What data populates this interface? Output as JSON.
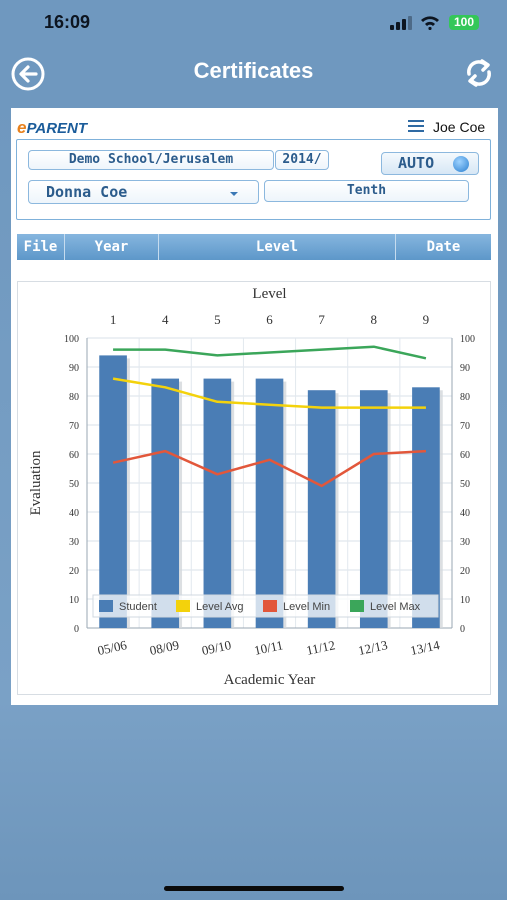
{
  "status_bar": {
    "time": "16:09",
    "battery": "100"
  },
  "nav": {
    "title": "Certificates",
    "back_icon": "back-arrow-icon",
    "refresh_icon": "refresh-icon"
  },
  "header": {
    "brand_e": "e",
    "brand_rest": "PARENT",
    "user_name": "Joe Coe"
  },
  "filters": {
    "school": "Demo School/Jerusalem",
    "year": "2014/",
    "auto_label": "AUTO",
    "student": "Donna Coe",
    "level": "Tenth"
  },
  "table": {
    "columns": [
      "File",
      "Year",
      "Level",
      "Date"
    ]
  },
  "colors": {
    "student": "#4a7db5",
    "level_avg": "#f3d20c",
    "level_min": "#e2573b",
    "level_max": "#3ba65a"
  },
  "chart_data": {
    "type": "bar",
    "title": "",
    "top_axis_label": "Level",
    "top_ticks": [
      "1",
      "4",
      "5",
      "6",
      "7",
      "8",
      "9"
    ],
    "categories": [
      "05/06",
      "08/09",
      "09/10",
      "10/11",
      "11/12",
      "12/13",
      "13/14"
    ],
    "xlabel": "Academic Year",
    "ylabel": "Evaluation",
    "ylim": [
      0,
      100
    ],
    "yticks": [
      0,
      10,
      20,
      30,
      40,
      50,
      60,
      70,
      80,
      90,
      100
    ],
    "grid": true,
    "legend_position": "bottom",
    "series": [
      {
        "name": "Student",
        "kind": "bar",
        "values": [
          94,
          86,
          86,
          86,
          82,
          82,
          83
        ]
      },
      {
        "name": "Level Avg",
        "kind": "line",
        "values": [
          86,
          83,
          78,
          77,
          76,
          76,
          76
        ]
      },
      {
        "name": "Level Min",
        "kind": "line",
        "values": [
          57,
          61,
          53,
          58,
          49,
          60,
          61
        ]
      },
      {
        "name": "Level Max",
        "kind": "line",
        "values": [
          96,
          96,
          94,
          95,
          96,
          97,
          93
        ]
      }
    ]
  }
}
